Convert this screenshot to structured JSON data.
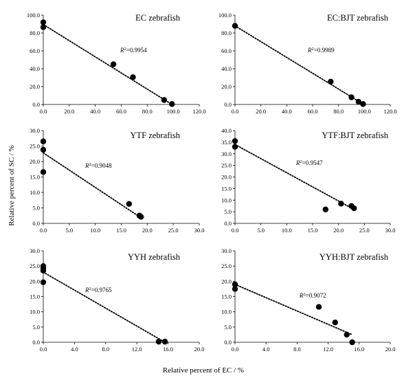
{
  "figure": {
    "ylabel": "Relative percent of SC / %",
    "xlabel": "Relative percent of EC / %"
  },
  "chart_data": [
    {
      "type": "scatter",
      "title": "EC zebrafish",
      "annotation": "R²=0.9954",
      "xlim": [
        0,
        120
      ],
      "ylim": [
        0,
        100
      ],
      "xticks": [
        0,
        20,
        40,
        60,
        80,
        100,
        120
      ],
      "yticks": [
        0,
        20,
        40,
        60,
        80,
        100
      ],
      "decimals": 1,
      "points": [
        [
          0,
          92
        ],
        [
          0,
          86.5
        ],
        [
          54,
          45
        ],
        [
          69,
          30.5
        ],
        [
          93,
          5
        ],
        [
          99,
          0.5
        ]
      ],
      "trendline": [
        [
          0,
          89.5
        ],
        [
          99,
          0
        ]
      ]
    },
    {
      "type": "scatter",
      "title": "EC:BJT zebrafish",
      "annotation": "R²=0.9989",
      "xlim": [
        0,
        120
      ],
      "ylim": [
        0,
        100
      ],
      "xticks": [
        0,
        20,
        40,
        60,
        80,
        100,
        120
      ],
      "yticks": [
        0,
        20,
        40,
        60,
        80,
        100
      ],
      "decimals": 1,
      "points": [
        [
          0,
          88
        ],
        [
          74,
          25.5
        ],
        [
          90,
          8
        ],
        [
          95.5,
          3
        ],
        [
          99,
          0.5
        ]
      ],
      "trendline": [
        [
          0,
          88
        ],
        [
          99,
          0.5
        ]
      ]
    },
    {
      "type": "scatter",
      "title": "YTF zebrafish",
      "annotation": "R²=0.9048",
      "xlim": [
        0,
        30
      ],
      "ylim": [
        0,
        30
      ],
      "xticks": [
        0,
        5,
        10,
        15,
        20,
        25,
        30
      ],
      "yticks": [
        0,
        5,
        10,
        15,
        20,
        25,
        30
      ],
      "decimals": 1,
      "points": [
        [
          0,
          26.5
        ],
        [
          0,
          23.8
        ],
        [
          0,
          16.6
        ],
        [
          16.5,
          6.3
        ],
        [
          18.5,
          2.5
        ],
        [
          18.8,
          2.1
        ]
      ],
      "trendline": [
        [
          0,
          22.8
        ],
        [
          18.8,
          1.8
        ]
      ]
    },
    {
      "type": "scatter",
      "title": "YTF:BJT zebrafish",
      "annotation": "R²=0.9547",
      "xlim": [
        0,
        30
      ],
      "ylim": [
        0,
        40
      ],
      "xticks": [
        0,
        5,
        10,
        15,
        20,
        25,
        30
      ],
      "yticks": [
        0,
        5,
        10,
        15,
        20,
        25,
        30,
        35,
        40
      ],
      "decimals": 1,
      "points": [
        [
          0,
          35.5
        ],
        [
          0,
          33
        ],
        [
          17.5,
          6
        ],
        [
          20.5,
          8.5
        ],
        [
          22.5,
          7.5
        ],
        [
          23,
          6.5
        ]
      ],
      "trendline": [
        [
          0,
          34
        ],
        [
          23,
          6
        ]
      ]
    },
    {
      "type": "scatter",
      "title": "YYH zebrafish",
      "annotation": "R²=0.9765",
      "xlim": [
        0,
        20
      ],
      "ylim": [
        0,
        30
      ],
      "xticks": [
        0,
        4,
        8,
        12,
        16,
        20
      ],
      "yticks": [
        0,
        5,
        10,
        15,
        20,
        25,
        30
      ],
      "decimals": 1,
      "points": [
        [
          0,
          25
        ],
        [
          0,
          24.3
        ],
        [
          0,
          23.5
        ],
        [
          0,
          19.7
        ],
        [
          14.8,
          0.2
        ],
        [
          15.6,
          0.2
        ]
      ],
      "trendline": [
        [
          0,
          23
        ],
        [
          15.6,
          0
        ]
      ]
    },
    {
      "type": "scatter",
      "title": "YYH:BJT zebrafish",
      "annotation": "R²=0.9072",
      "xlim": [
        0,
        20
      ],
      "ylim": [
        0,
        30
      ],
      "xticks": [
        0,
        4,
        8,
        12,
        16,
        20
      ],
      "yticks": [
        0,
        5,
        10,
        15,
        20,
        25,
        30
      ],
      "decimals": 1,
      "points": [
        [
          0,
          19
        ],
        [
          0,
          17.5
        ],
        [
          10.8,
          11.6
        ],
        [
          12.9,
          6.5
        ],
        [
          14.4,
          2.5
        ],
        [
          15.1,
          0
        ]
      ],
      "trendline": [
        [
          0,
          19
        ],
        [
          15.1,
          2.5
        ]
      ]
    }
  ]
}
